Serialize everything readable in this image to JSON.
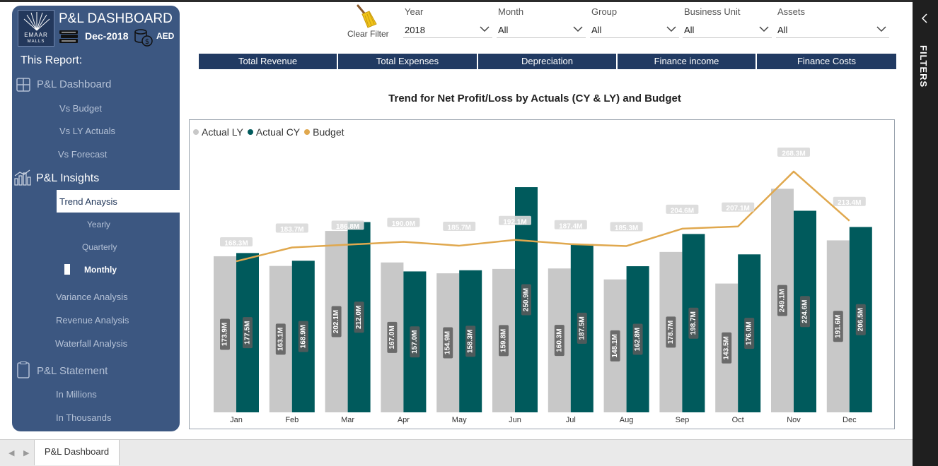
{
  "app": {
    "title": "P&L DASHBOARD",
    "period": "Dec-2018",
    "currency": "AED",
    "logo_text": "EMAAR",
    "logo_sub": "MALLS"
  },
  "sidebar": {
    "heading": "This Report:",
    "items": [
      {
        "label": "P&L Dashboard",
        "icon": "grid-icon"
      },
      {
        "label": "Vs Budget"
      },
      {
        "label": "Vs LY Actuals"
      },
      {
        "label": "Vs Forecast"
      },
      {
        "label": "P&L Insights",
        "icon": "bar-chart-icon"
      },
      {
        "label": "Trend Anaysis"
      },
      {
        "label": "Yearly"
      },
      {
        "label": "Quarterly"
      },
      {
        "label": "Monthly"
      },
      {
        "label": "Variance Analysis"
      },
      {
        "label": "Revenue Analysis"
      },
      {
        "label": "Waterfall Analysis"
      },
      {
        "label": "P&L Statement",
        "icon": "document-icon"
      },
      {
        "label": "In Millions"
      },
      {
        "label": "In Thousands"
      }
    ]
  },
  "toolbar": {
    "clear_filter": "Clear Filter"
  },
  "slicers": [
    {
      "label": "Year",
      "value": "2018"
    },
    {
      "label": "Month",
      "value": "All"
    },
    {
      "label": "Group",
      "value": "All"
    },
    {
      "label": "Business Unit",
      "value": "All"
    },
    {
      "label": "Assets",
      "value": "All"
    }
  ],
  "kpi_tabs": [
    "Total Revenue",
    "Total Expenses",
    "Depreciation",
    "Finance income",
    "Finance Costs"
  ],
  "filters_pane": {
    "label": "FILTERS"
  },
  "footer": {
    "page_tab": "P&L Dashboard"
  },
  "colors": {
    "actual_ly": "#c8c8c8",
    "actual_cy": "#005a5c",
    "budget": "#e0a84e",
    "sidebar": "#3c5781",
    "tab": "#213a62"
  },
  "chart_data": {
    "type": "bar",
    "title": "Trend for Net Profit/Loss by Actuals (CY & LY) and Budget",
    "categories": [
      "Jan",
      "Feb",
      "Mar",
      "Apr",
      "May",
      "Jun",
      "Jul",
      "Aug",
      "Sep",
      "Oct",
      "Nov",
      "Dec"
    ],
    "series": [
      {
        "name": "Actual LY",
        "type": "bar",
        "values": [
          173.9,
          163.1,
          202.1,
          167.0,
          154.9,
          159.8,
          160.3,
          148.1,
          178.7,
          143.5,
          249.1,
          191.6
        ],
        "labels": [
          "173.9M",
          "163.1M",
          "202.1M",
          "167.0M",
          "154.9M",
          "159.8M",
          "160.3M",
          "148.1M",
          "178.7M",
          "143.5M",
          "249.1M",
          "191.6M"
        ]
      },
      {
        "name": "Actual CY",
        "type": "bar",
        "values": [
          177.5,
          168.9,
          212.0,
          157.0,
          158.3,
          250.9,
          187.5,
          162.8,
          198.7,
          176.0,
          224.6,
          206.5
        ],
        "labels": [
          "177.5M",
          "168.9M",
          "212.0M",
          "157.0M",
          "158.3M",
          "250.9M",
          "187.5M",
          "162.8M",
          "198.7M",
          "176.0M",
          "224.6M",
          "206.5M"
        ]
      },
      {
        "name": "Budget",
        "type": "line",
        "values": [
          168.3,
          183.7,
          186.8,
          190.0,
          185.7,
          192.1,
          187.4,
          185.3,
          204.6,
          207.1,
          268.3,
          213.4
        ],
        "labels": [
          "168.3M",
          "183.7M",
          "186.8M",
          "190.0M",
          "185.7M",
          "192.1M",
          "187.4M",
          "185.3M",
          "204.6M",
          "207.1M",
          "268.3M",
          "213.4M"
        ]
      }
    ],
    "ylim": [
      0,
      295
    ],
    "grid": false,
    "legend": "top-left"
  }
}
